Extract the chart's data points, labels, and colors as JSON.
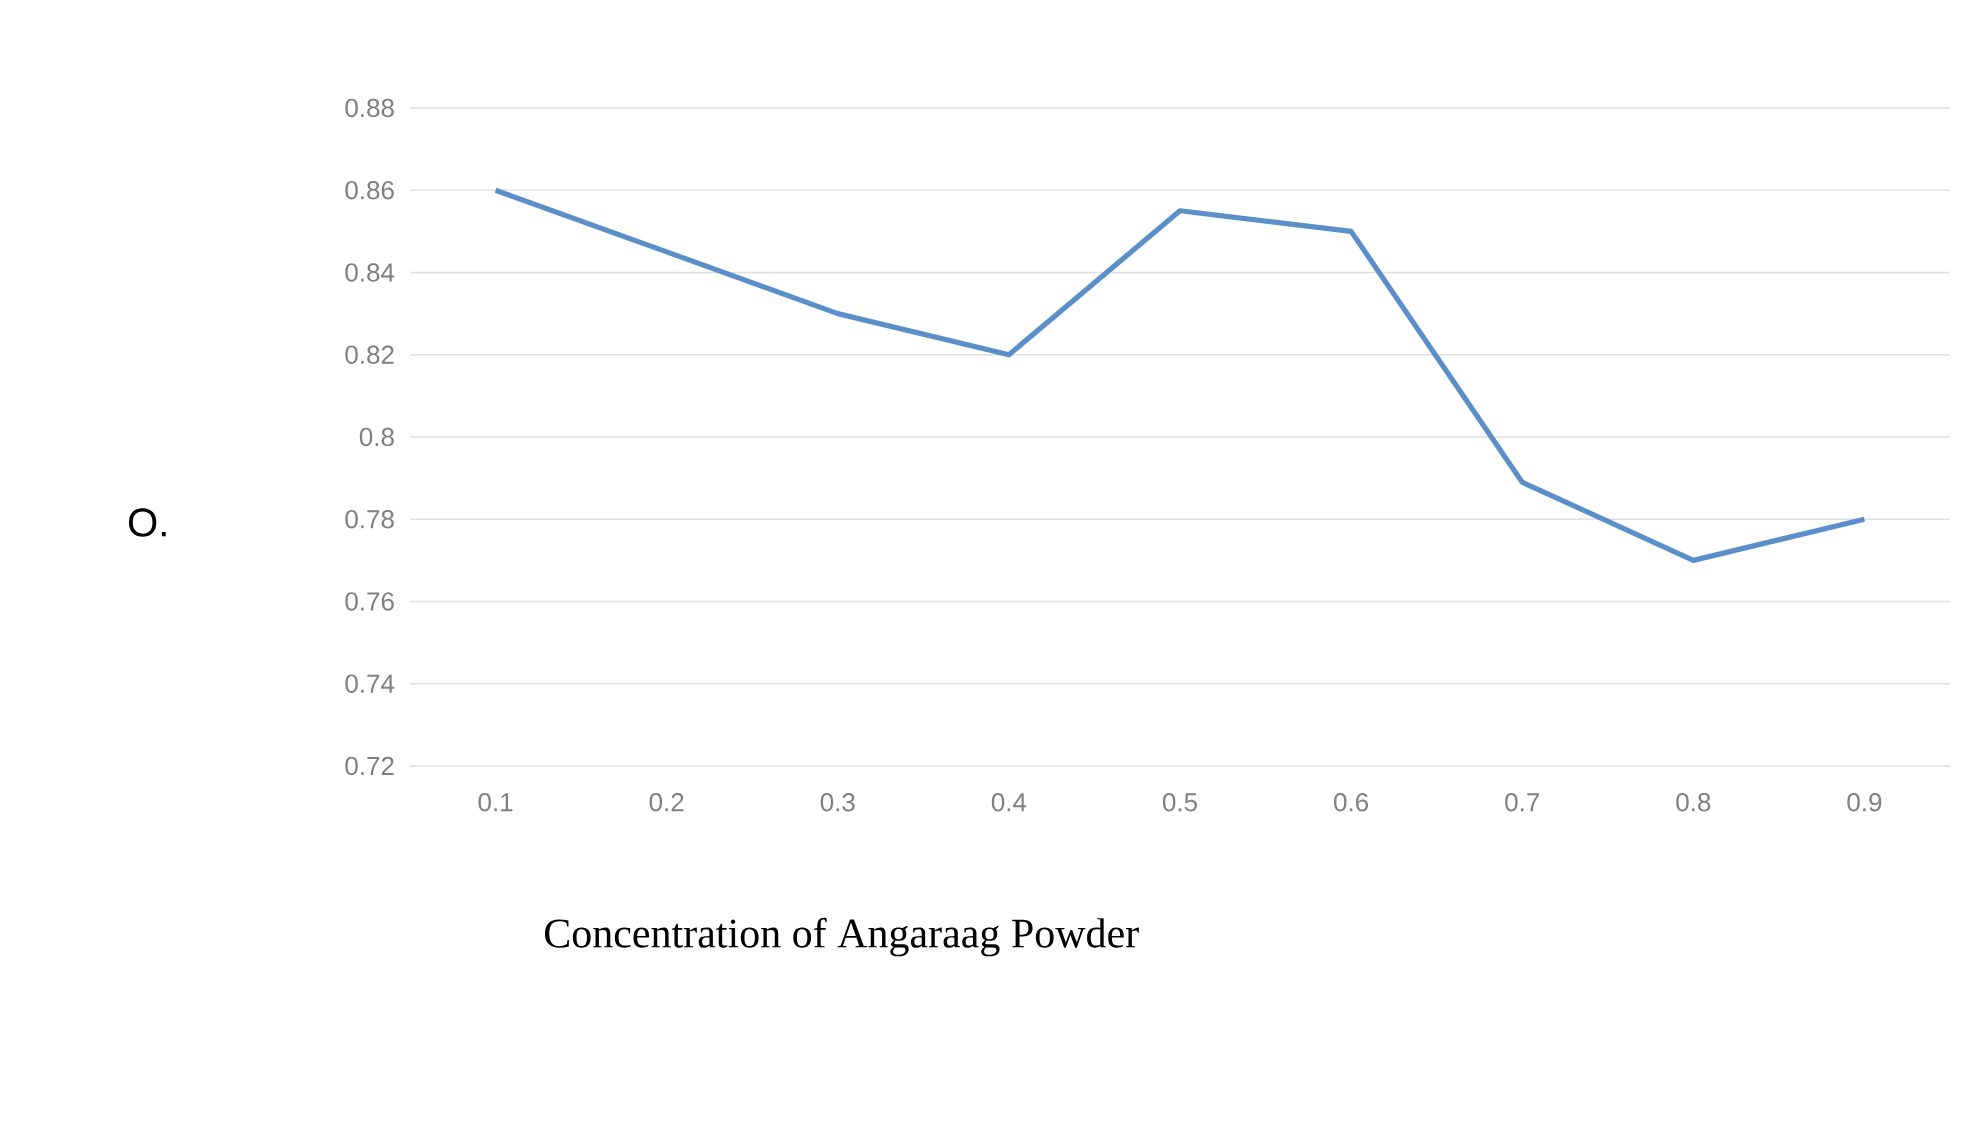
{
  "chart_data": {
    "type": "line",
    "xlabel": "Concentration of Angaraag Powder",
    "ylabel": "O.",
    "categories": [
      "0.1",
      "0.2",
      "0.3",
      "0.4",
      "0.5",
      "0.6",
      "0.7",
      "0.8",
      "0.9"
    ],
    "series": [
      {
        "color": "#5b8fc9",
        "values": [
          0.86,
          0.845,
          0.83,
          0.82,
          0.855,
          0.85,
          0.789,
          0.77,
          0.78
        ]
      }
    ],
    "ylim": [
      0.72,
      0.88
    ],
    "yticks": [
      0.72,
      0.74,
      0.76,
      0.78,
      0.8,
      0.82,
      0.84,
      0.86,
      0.88
    ],
    "grid": "y",
    "marker": "none",
    "line_style": "solid"
  }
}
